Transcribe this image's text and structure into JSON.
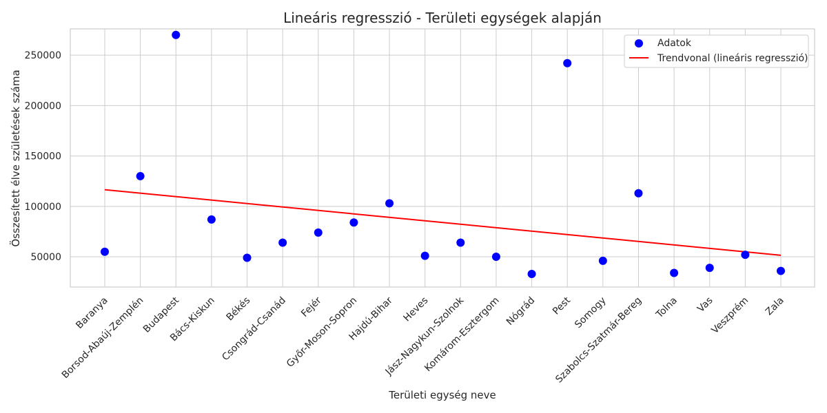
{
  "chart_data": {
    "type": "scatter",
    "title": "Lineáris regresszió - Területi egységek alapján",
    "xlabel": "Területi egység neve",
    "ylabel": "Összesített élve születések száma",
    "categories": [
      "Baranya",
      "Borsod-Abaúj-Zemplén",
      "Budapest",
      "Bács-Kiskun",
      "Békés",
      "Csongrád-Csanád",
      "Fejér",
      "Győr-Moson-Sopron",
      "Hajdú-Bihar",
      "Heves",
      "Jász-Nagykun-Szolnok",
      "Komárom-Esztergom",
      "Nógrád",
      "Pest",
      "Somogy",
      "Szabolcs-Szatmár-Bereg",
      "Tolna",
      "Vas",
      "Veszprém",
      "Zala"
    ],
    "y_ticks": [
      50000,
      100000,
      150000,
      200000,
      250000
    ],
    "ylim": [
      20000,
      276000
    ],
    "grid": true,
    "legend_position": "top-right",
    "series": [
      {
        "name": "Adatok",
        "kind": "scatter",
        "color": "#0000ff",
        "values": [
          55000,
          130000,
          270000,
          87000,
          49000,
          64000,
          74000,
          84000,
          103000,
          51000,
          64000,
          50000,
          33000,
          242000,
          46000,
          113000,
          34000,
          39000,
          52000,
          36000
        ]
      },
      {
        "name": "Trendvonal (lineáris regresszió)",
        "kind": "line",
        "color": "#ff0000",
        "start": 116500,
        "end": 51500
      }
    ]
  }
}
